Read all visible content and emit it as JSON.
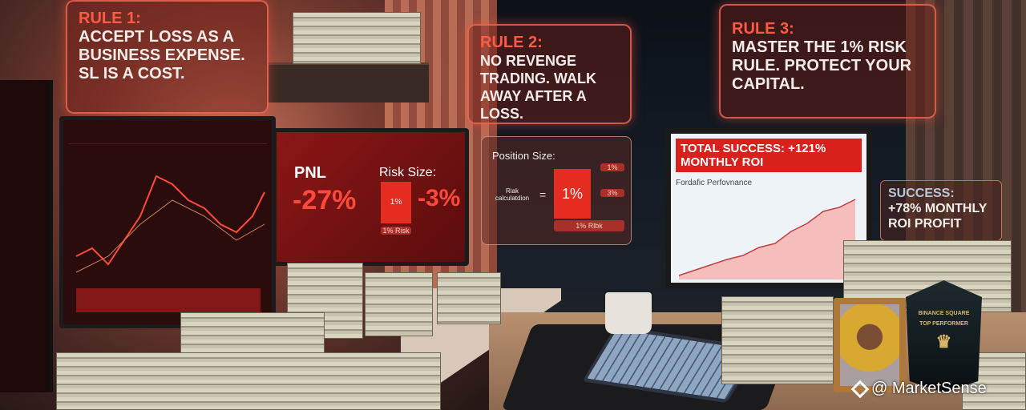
{
  "rules": [
    {
      "title": "Rule 1:",
      "body": "Accept loss as a business expense. SL is a cost."
    },
    {
      "title": "Rule 2:",
      "body": "No revenge trading. Walk away after a loss."
    },
    {
      "title": "Rule 3:",
      "body": "Master the 1% risk rule. Protect your capital."
    }
  ],
  "pnl_monitor": {
    "pnl_label": "PNL",
    "pnl_value": "-27%",
    "risk_label": "Risk Size:",
    "risk_box": "1%",
    "risk_value": "-3%",
    "risk_caption": "1% Risk"
  },
  "position_panel": {
    "title": "Position Size:",
    "calc_label": "Riak calculatdion",
    "equals": "=",
    "box": "1%",
    "chip_top": "1%",
    "chip_mid": "3%",
    "caption": "1% Rlbk"
  },
  "performance_monitor": {
    "banner": "TOTAL SUCCESS: +121% MONTHLY ROI",
    "chart_title": "Fordafic Perfovnance"
  },
  "success_panel": {
    "title": "Success:",
    "body": "+78% Monthly ROI Profit"
  },
  "trophy": {
    "line1": "BINANCE SQUARE",
    "line2": "TOP PERFORMER"
  },
  "watermark": {
    "text": "@ MarketSense"
  },
  "colors": {
    "accent": "#ff5a45",
    "banner": "#d9211c",
    "chart_fill": "#f08080"
  }
}
